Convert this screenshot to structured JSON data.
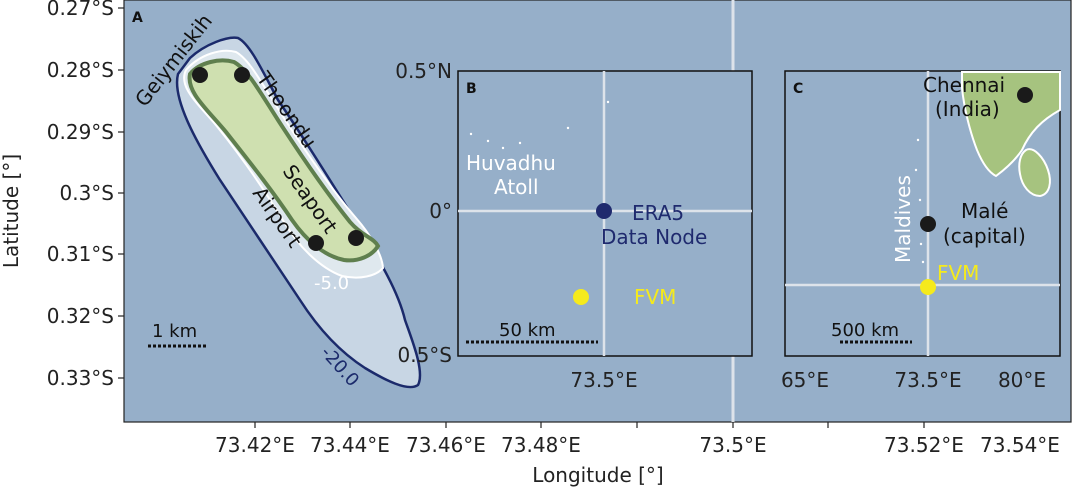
{
  "axes": {
    "xlabel": "Longitude [°]",
    "ylabel": "Latitude [°]",
    "x_ticks": [
      "73.42°E",
      "73.44°E",
      "73.46°E",
      "73.48°E",
      "73.5°E",
      "73.52°E",
      "73.54°E"
    ],
    "y_ticks": [
      "0.27°S",
      "0.28°S",
      "0.29°S",
      "0.3°S",
      "0.31°S",
      "0.32°S",
      "0.33°S"
    ]
  },
  "panel_a": {
    "label": "A",
    "places": [
      "Geiymiskih",
      "Thoondu",
      "Seaport",
      "Airport"
    ],
    "contours": [
      "-5.0",
      "-20.0"
    ],
    "scalebar": "1 km"
  },
  "panel_b": {
    "label": "B",
    "y_ticks": [
      "0.5°N",
      "0°",
      "0.5°S"
    ],
    "x_tick": "73.5°E",
    "atoll_line1": "Huvadhu",
    "atoll_line2": "Atoll",
    "node_line1": "ERA5",
    "node_line2": "Data Node",
    "fvm": "FVM",
    "scalebar": "50 km"
  },
  "panel_c": {
    "label": "C",
    "x_ticks": [
      "65°E",
      "73.5°E",
      "80°E"
    ],
    "chennai_line1": "Chennai",
    "chennai_line2": "(India)",
    "maldives": "Maldives",
    "male_line1": "Malé",
    "male_line2": "(capital)",
    "fvm": "FVM",
    "scalebar": "500 km"
  },
  "colors": {
    "ocean": "#96afc9",
    "land": "#cfe0b0",
    "land_edge": "#5f7f4e",
    "lagoon": "#c8d6e4",
    "contour": "#1b2a6b",
    "era5": "#1f2a6e",
    "fvm": "#f5ea1c",
    "grid": "#dde3ea"
  }
}
